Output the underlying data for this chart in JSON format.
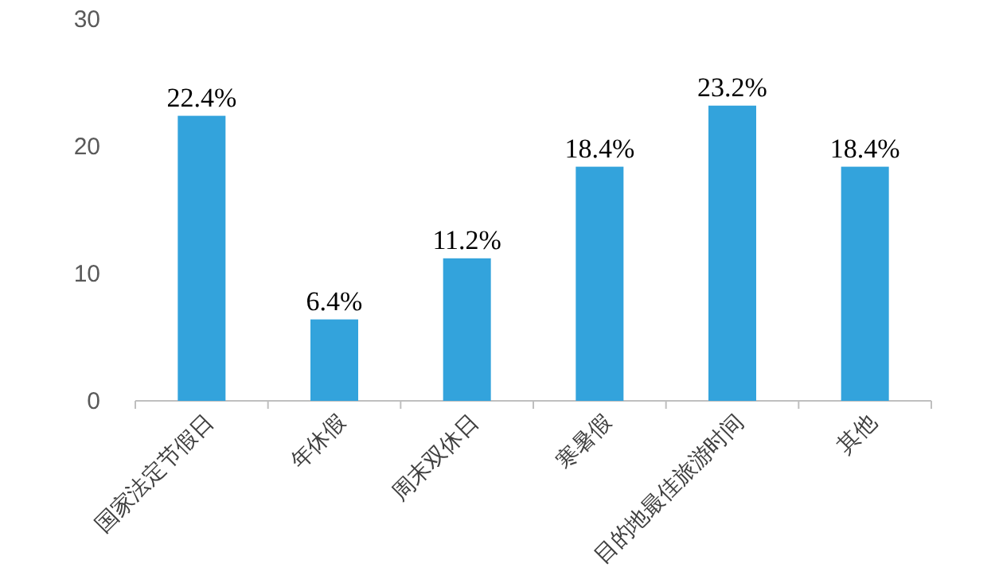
{
  "chart_data": {
    "type": "bar",
    "categories": [
      "国家法定节假日",
      "年休假",
      "周末双休日",
      "寒暑假",
      "目的地最佳旅游时间",
      "其他"
    ],
    "values": [
      22.4,
      6.4,
      11.2,
      18.4,
      23.2,
      18.4
    ],
    "value_labels": [
      "22.4%",
      "6.4%",
      "11.2%",
      "18.4%",
      "23.2%",
      "18.4%"
    ],
    "color": "#33a3dc",
    "ylim": [
      0,
      30
    ],
    "yticks": [
      0,
      10,
      20,
      30
    ]
  }
}
